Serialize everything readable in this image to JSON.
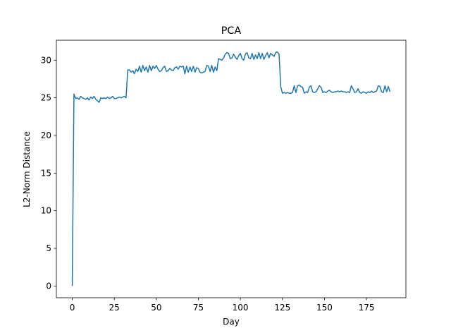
{
  "chart_data": {
    "type": "line",
    "title": "PCA",
    "xlabel": "Day",
    "ylabel": "L2-Norm Distance",
    "color": "#1f77b4",
    "x": [
      0,
      1,
      2,
      3,
      4,
      5,
      6,
      7,
      8,
      9,
      10,
      11,
      12,
      13,
      14,
      15,
      16,
      17,
      18,
      19,
      20,
      21,
      22,
      23,
      24,
      25,
      26,
      27,
      28,
      29,
      30,
      31,
      32,
      33,
      34,
      35,
      36,
      37,
      38,
      39,
      40,
      41,
      42,
      43,
      44,
      45,
      46,
      47,
      48,
      49,
      50,
      51,
      52,
      53,
      54,
      55,
      56,
      57,
      58,
      59,
      60,
      61,
      62,
      63,
      64,
      65,
      66,
      67,
      68,
      69,
      70,
      71,
      72,
      73,
      74,
      75,
      76,
      77,
      78,
      79,
      80,
      81,
      82,
      83,
      84,
      85,
      86,
      87,
      88,
      89,
      90,
      91,
      92,
      93,
      94,
      95,
      96,
      97,
      98,
      99,
      100,
      101,
      102,
      103,
      104,
      105,
      106,
      107,
      108,
      109,
      110,
      111,
      112,
      113,
      114,
      115,
      116,
      117,
      118,
      119,
      120,
      121,
      122,
      123,
      124,
      125,
      126,
      127,
      128,
      129,
      130,
      131,
      132,
      133,
      134,
      135,
      136,
      137,
      138,
      139,
      140,
      141,
      142,
      143,
      144,
      145,
      146,
      147,
      148,
      149,
      150,
      151,
      152,
      153,
      154,
      155,
      156,
      157,
      158,
      159,
      160,
      161,
      162,
      163,
      164,
      165,
      166,
      167,
      168,
      169,
      170,
      171,
      172,
      173,
      174,
      175,
      176,
      177,
      178,
      179,
      180,
      181,
      182,
      183,
      184,
      185,
      186,
      187,
      188,
      189
    ],
    "values": [
      0,
      25.5,
      24.9,
      25.0,
      24.8,
      25.2,
      25.0,
      24.9,
      24.8,
      25.0,
      24.7,
      25.1,
      24.9,
      25.2,
      24.8,
      24.6,
      24.4,
      25.0,
      24.9,
      25.0,
      24.9,
      25.1,
      24.9,
      25.0,
      25.2,
      24.9,
      24.9,
      25.0,
      25.1,
      25.0,
      25.1,
      25.2,
      25.0,
      28.7,
      28.7,
      28.4,
      28.6,
      28.2,
      28.8,
      28.5,
      29.2,
      28.4,
      29.3,
      28.6,
      29.1,
      28.4,
      29.3,
      28.6,
      29.2,
      28.9,
      29.3,
      28.8,
      28.5,
      28.6,
      29.0,
      29.2,
      28.5,
      28.6,
      28.9,
      28.7,
      28.6,
      29.0,
      29.1,
      28.8,
      29.2,
      29.1,
      29.2,
      28.2,
      29.2,
      28.4,
      29.1,
      28.5,
      29.2,
      28.4,
      29.0,
      28.9,
      28.4,
      28.3,
      28.4,
      28.5,
      29.3,
      29.2,
      28.5,
      29.3,
      28.4,
      29.1,
      28.6,
      30.2,
      30.1,
      30.0,
      30.3,
      30.8,
      31.0,
      30.9,
      30.2,
      30.3,
      30.8,
      30.4,
      30.1,
      30.6,
      30.9,
      30.2,
      30.0,
      30.8,
      31.0,
      30.3,
      30.2,
      30.9,
      30.1,
      30.7,
      30.2,
      31.0,
      30.2,
      30.9,
      30.1,
      30.6,
      31.0,
      30.3,
      30.9,
      30.7,
      30.5,
      31.0,
      31.1,
      30.8,
      26.5,
      25.6,
      25.7,
      25.6,
      25.7,
      25.6,
      25.6,
      25.7,
      26.6,
      25.7,
      26.6,
      26.7,
      26.5,
      26.4,
      25.6,
      25.8,
      25.7,
      26.4,
      26.6,
      25.8,
      25.7,
      25.8,
      26.2,
      26.6,
      26.4,
      25.7,
      25.8,
      25.7,
      25.9,
      26.0,
      25.8,
      25.7,
      25.8,
      25.8,
      25.9,
      25.8,
      25.9,
      25.8,
      25.8,
      25.7,
      25.8,
      25.7,
      26.6,
      26.2,
      25.7,
      25.8,
      26.2,
      25.7,
      25.6,
      25.8,
      25.7,
      25.6,
      25.8,
      25.7,
      25.9,
      25.7,
      25.8,
      25.9,
      26.6,
      26.5,
      25.8,
      25.7,
      26.6,
      25.8,
      26.5,
      25.8
    ],
    "xlim": [
      -9.45,
      198.45
    ],
    "ylim": [
      -1.555,
      32.65
    ],
    "xticks": [
      0,
      25,
      50,
      75,
      100,
      125,
      150,
      175
    ],
    "yticks": [
      0,
      5,
      10,
      15,
      20,
      25,
      30
    ]
  }
}
